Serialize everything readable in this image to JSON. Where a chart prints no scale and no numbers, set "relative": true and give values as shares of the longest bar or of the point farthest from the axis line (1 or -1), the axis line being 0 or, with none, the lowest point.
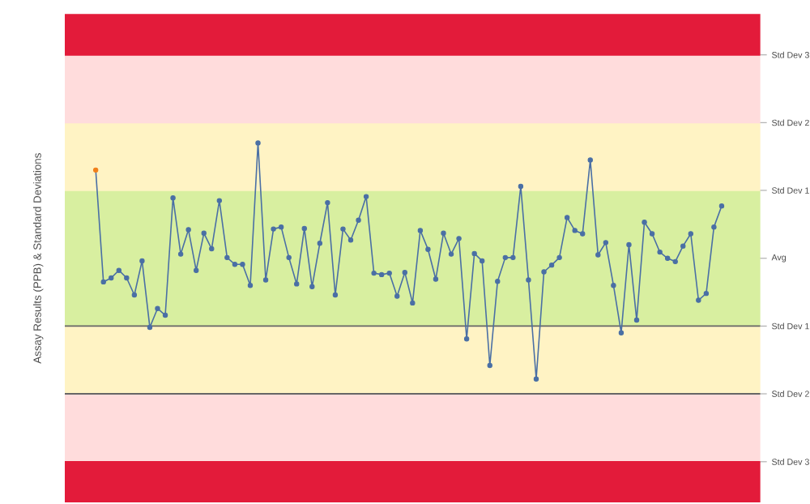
{
  "chart_data": {
    "type": "line",
    "ylabel": "Assay Results (PPB) & Standard Deviations",
    "relative": true,
    "categories": [
      null,
      null,
      null,
      null,
      null,
      null,
      null,
      null,
      null,
      null,
      null,
      null,
      null,
      null,
      null,
      null,
      null,
      null,
      null,
      null,
      null,
      null,
      null,
      null,
      null,
      null,
      null,
      null,
      null,
      null,
      null,
      null,
      null,
      null,
      null,
      null,
      null,
      null,
      null,
      null,
      null,
      null,
      null,
      null,
      null,
      null,
      null,
      null,
      null,
      null,
      null,
      null,
      null,
      null,
      null,
      null,
      null,
      null,
      null,
      null,
      null,
      null,
      null,
      null,
      null,
      null,
      null,
      null,
      null,
      null,
      null,
      null,
      null,
      null,
      null,
      null,
      null,
      null,
      null,
      null,
      null,
      null
    ],
    "series": [
      {
        "color": "#4a6fa5",
        "colors": [
          "#f07f1a",
          "#4a6fa5",
          "#4a6fa5",
          "#4a6fa5",
          "#4a6fa5",
          "#4a6fa5",
          "#4a6fa5",
          "#4a6fa5",
          "#4a6fa5",
          "#4a6fa5",
          "#4a6fa5",
          "#4a6fa5",
          "#4a6fa5",
          "#4a6fa5",
          "#4a6fa5",
          "#4a6fa5",
          "#4a6fa5",
          "#4a6fa5",
          "#4a6fa5",
          "#4a6fa5",
          "#4a6fa5",
          "#4a6fa5",
          "#4a6fa5",
          "#4a6fa5",
          "#4a6fa5",
          "#4a6fa5",
          "#4a6fa5",
          "#4a6fa5",
          "#4a6fa5",
          "#4a6fa5",
          "#4a6fa5",
          "#4a6fa5",
          "#4a6fa5",
          "#4a6fa5",
          "#4a6fa5",
          "#4a6fa5",
          "#4a6fa5",
          "#4a6fa5",
          "#4a6fa5",
          "#4a6fa5",
          "#4a6fa5",
          "#4a6fa5",
          "#4a6fa5",
          "#4a6fa5",
          "#4a6fa5",
          "#4a6fa5",
          "#4a6fa5",
          "#4a6fa5",
          "#4a6fa5",
          "#4a6fa5",
          "#4a6fa5",
          "#4a6fa5",
          "#4a6fa5",
          "#4a6fa5",
          "#4a6fa5",
          "#4a6fa5",
          "#4a6fa5",
          "#4a6fa5",
          "#4a6fa5",
          "#4a6fa5",
          "#4a6fa5",
          "#4a6fa5",
          "#4a6fa5",
          "#4a6fa5",
          "#4a6fa5",
          "#4a6fa5",
          "#4a6fa5",
          "#4a6fa5",
          "#4a6fa5",
          "#4a6fa5",
          "#4a6fa5",
          "#4a6fa5",
          "#4a6fa5",
          "#4a6fa5",
          "#4a6fa5",
          "#4a6fa5",
          "#4a6fa5",
          "#4a6fa5",
          "#4a6fa5",
          "#4a6fa5",
          "#4a6fa5",
          "#4a6fa5"
        ],
        "values": [
          0.852,
          0.241,
          0.263,
          0.304,
          0.263,
          0.17,
          0.356,
          -0.007,
          0.096,
          0.059,
          0.7,
          0.393,
          0.526,
          0.304,
          0.507,
          0.422,
          0.685,
          0.374,
          0.337,
          0.337,
          0.222,
          1,
          0.252,
          0.53,
          0.541,
          0.374,
          0.23,
          0.533,
          0.215,
          0.452,
          0.674,
          0.17,
          0.53,
          0.47,
          0.578,
          0.707,
          0.289,
          0.281,
          0.289,
          0.163,
          0.293,
          0.126,
          0.522,
          0.419,
          0.256,
          0.507,
          0.393,
          0.478,
          -0.07,
          0.396,
          0.356,
          -0.215,
          0.244,
          0.374,
          0.374,
          0.763,
          0.252,
          -0.289,
          0.296,
          0.333,
          0.374,
          0.593,
          0.522,
          0.504,
          0.907,
          0.389,
          0.456,
          0.222,
          -0.037,
          0.444,
          0.033,
          0.567,
          0.504,
          0.404,
          0.37,
          0.352,
          0.437,
          0.504,
          0.141,
          0.178,
          0.541,
          0.656
        ]
      }
    ],
    "bands": [
      {
        "axis": "y",
        "from": 1.481,
        "to": 1.704,
        "color": "#e31b3a"
      },
      {
        "axis": "y",
        "from": 1.111,
        "to": 1.481,
        "color": "#ffdcdc"
      },
      {
        "axis": "y",
        "from": 0.741,
        "to": 1.111,
        "color": "#fff3c4"
      },
      {
        "axis": "y",
        "from": 0,
        "to": 0.741,
        "color": "#d8efa0"
      },
      {
        "axis": "y",
        "from": -0.37,
        "to": 0,
        "color": "#fff3c4"
      },
      {
        "axis": "y",
        "from": -0.741,
        "to": -0.37,
        "color": "#ffdcdc"
      },
      {
        "axis": "y",
        "from": -0.963,
        "to": -0.741,
        "color": "#e31b3a"
      }
    ],
    "ref_lines": [
      {
        "axis": "y",
        "value": 1.481,
        "label": "Std Dev 3",
        "color": "#e31b3a"
      },
      {
        "axis": "y",
        "value": 1.111,
        "label": "Std Dev 2",
        "color": "#ffdcdc"
      },
      {
        "axis": "y",
        "value": 0.741,
        "label": "Std Dev 1",
        "color": "#fff3c4"
      },
      {
        "axis": "y",
        "value": 0.37,
        "label": "Avg",
        "color": "#d8efa0"
      },
      {
        "axis": "y",
        "value": 0,
        "label": "Std Dev 1",
        "color": "#666666"
      },
      {
        "axis": "y",
        "value": -0.37,
        "label": "Std Dev 2",
        "color": "#666666"
      },
      {
        "axis": "y",
        "value": -0.741,
        "label": "Std Dev 3",
        "color": "#e31b3a"
      }
    ],
    "marker": "circle"
  }
}
